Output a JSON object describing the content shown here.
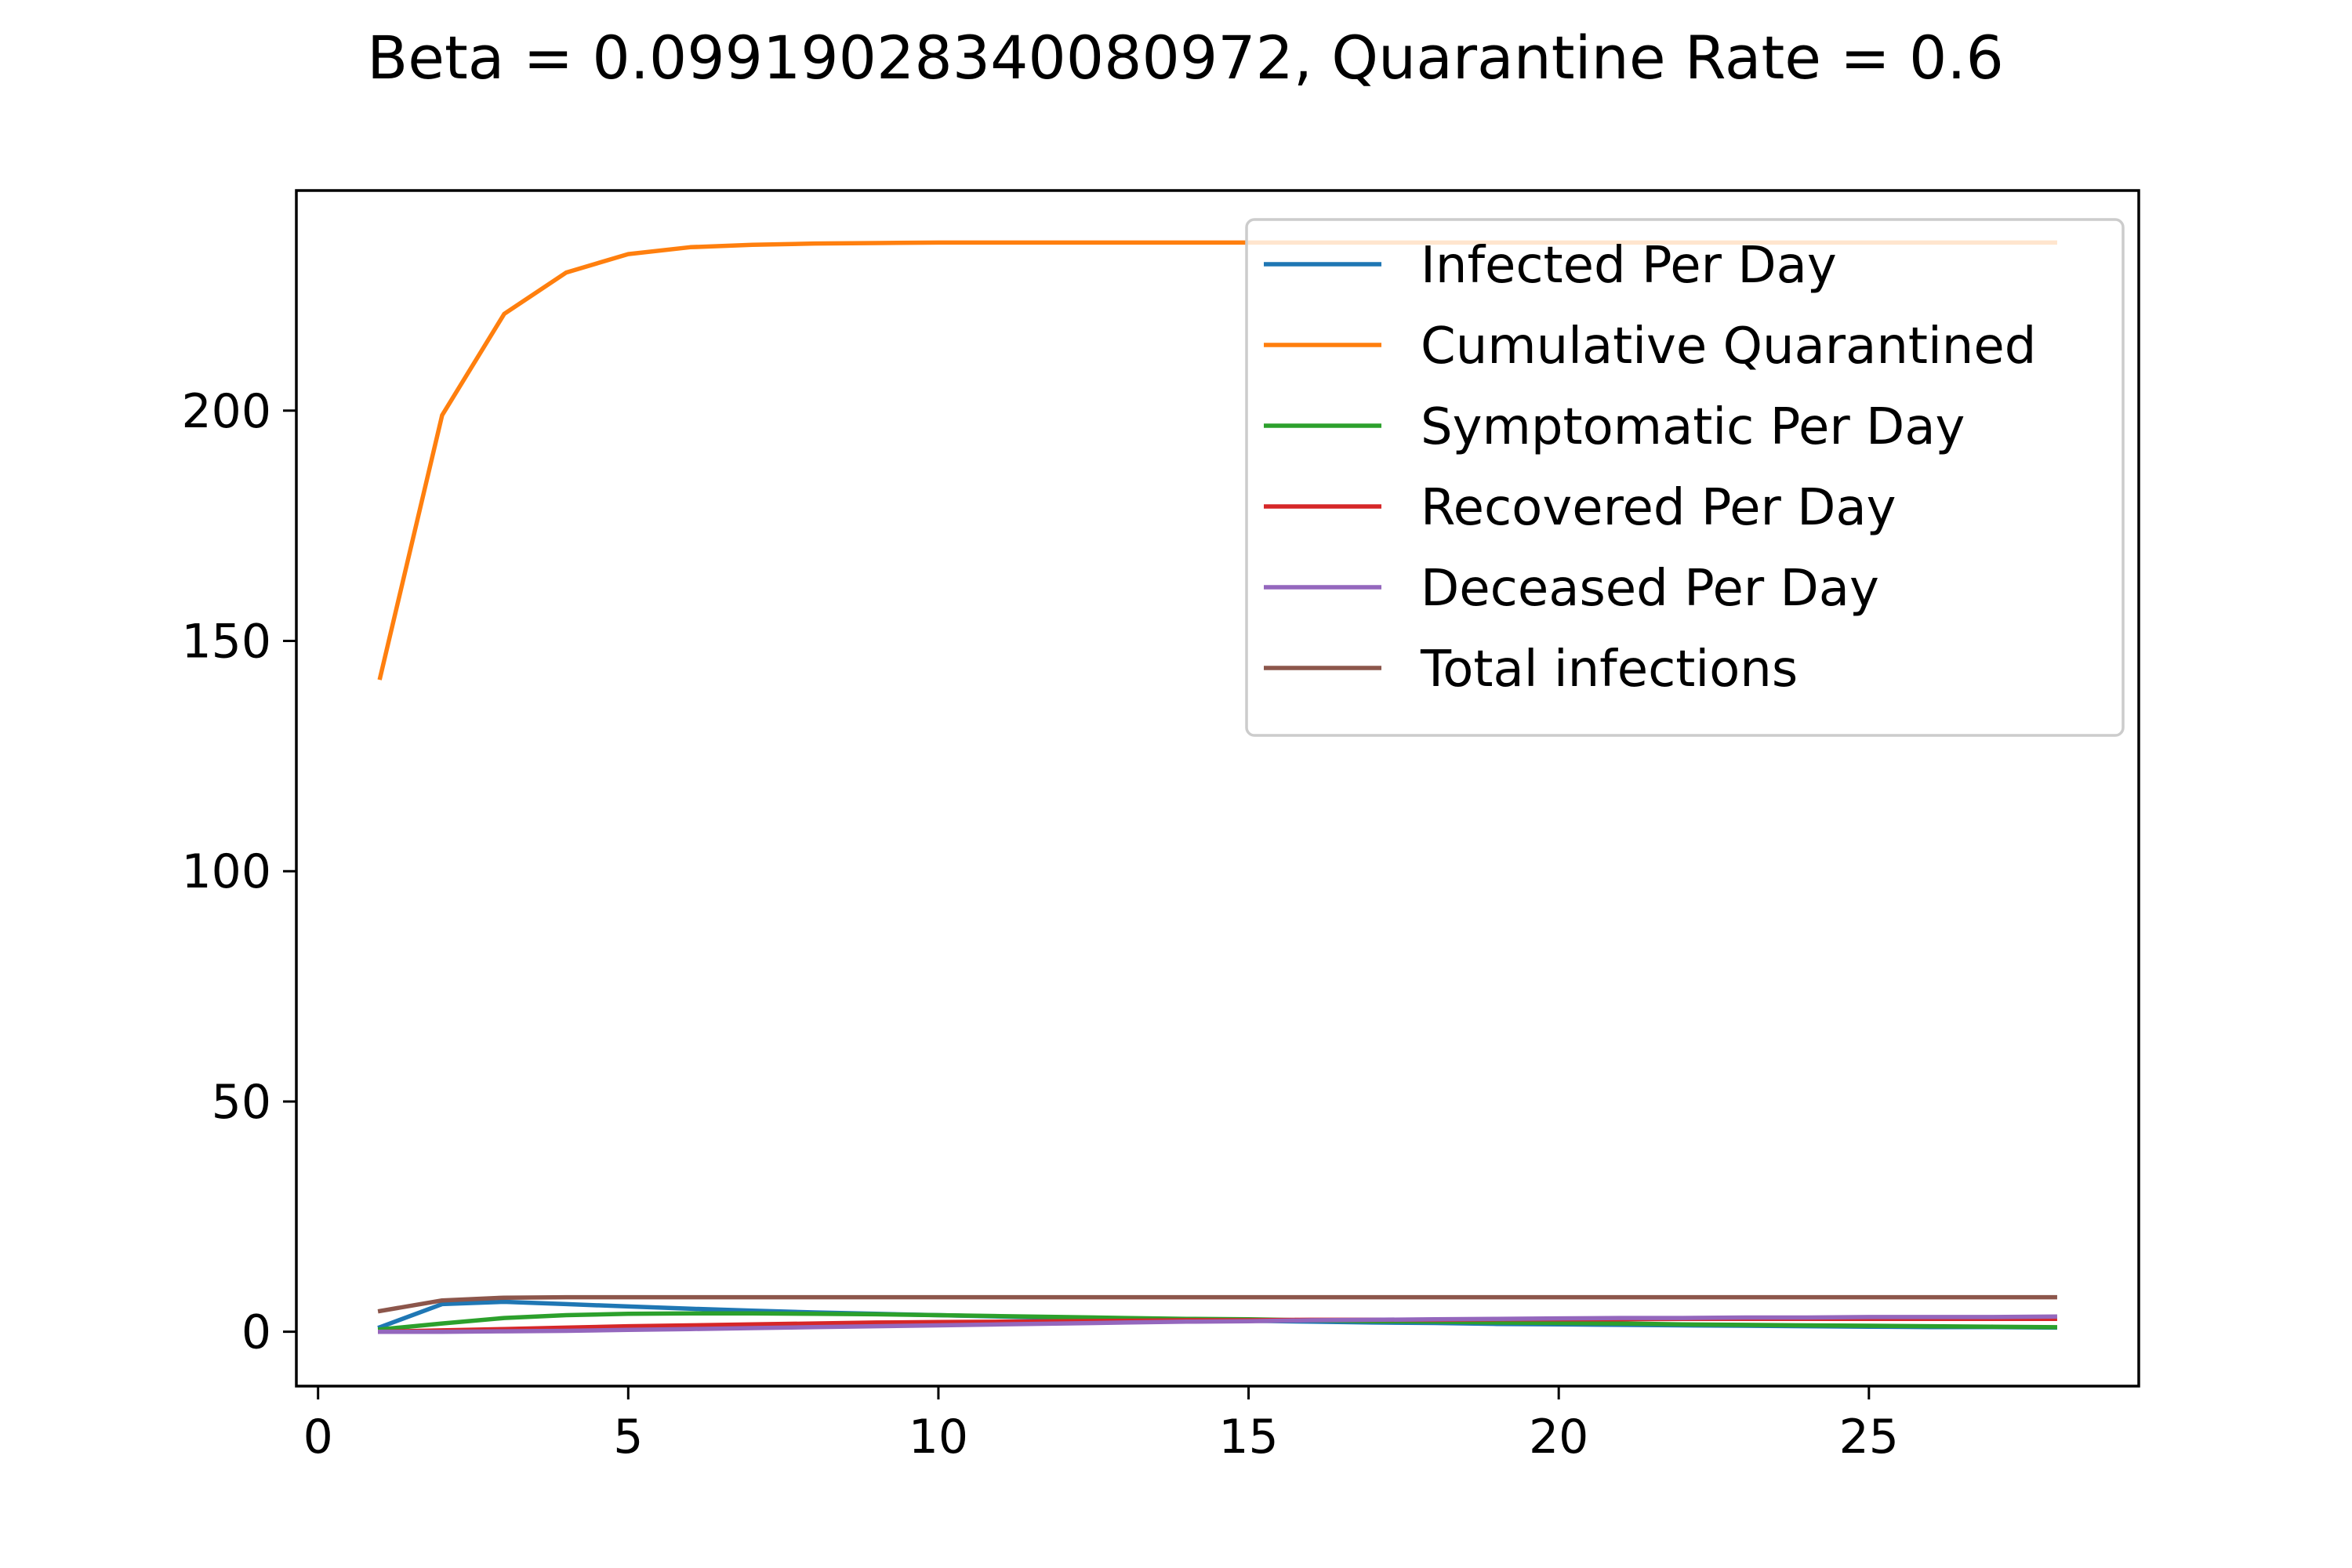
{
  "chart_data": {
    "type": "line",
    "title": "Beta = 0.09919028340080972, Quarantine Rate = 0.6",
    "xlabel": "",
    "ylabel": "",
    "xlim": [
      -0.35,
      29.35
    ],
    "ylim": [
      -11.8,
      247.8
    ],
    "xticks": [
      0,
      5,
      10,
      15,
      20,
      25
    ],
    "yticks": [
      0,
      50,
      100,
      150,
      200
    ],
    "grid": false,
    "legend_position": "upper right",
    "x": [
      1,
      2,
      3,
      4,
      5,
      6,
      7,
      8,
      9,
      10,
      11,
      12,
      13,
      14,
      15,
      16,
      17,
      18,
      19,
      20,
      21,
      22,
      23,
      24,
      25,
      26,
      27,
      28
    ],
    "series": [
      {
        "name": "Infected Per Day",
        "color": "#1f77b4",
        "values": [
          1.0,
          6.0,
          6.5,
          6.0,
          5.5,
          5.0,
          4.6,
          4.2,
          3.9,
          3.6,
          3.3,
          3.0,
          2.8,
          2.6,
          2.4,
          2.2,
          2.0,
          1.9,
          1.7,
          1.6,
          1.5,
          1.4,
          1.3,
          1.2,
          1.1,
          1.0,
          1.0,
          0.9
        ]
      },
      {
        "name": "Cumulative Quarantined",
        "color": "#ff7f0e",
        "values": [
          142,
          199,
          221,
          230,
          234,
          235.5,
          236,
          236.3,
          236.4,
          236.5,
          236.5,
          236.5,
          236.5,
          236.5,
          236.5,
          236.5,
          236.5,
          236.5,
          236.5,
          236.5,
          236.5,
          236.5,
          236.5,
          236.5,
          236.5,
          236.5,
          236.5,
          236.5
        ]
      },
      {
        "name": "Symptomatic Per Day",
        "color": "#2ca02c",
        "values": [
          0.5,
          1.8,
          3.0,
          3.6,
          3.9,
          4.0,
          4.0,
          3.9,
          3.8,
          3.6,
          3.4,
          3.2,
          3.0,
          2.8,
          2.7,
          2.5,
          2.3,
          2.2,
          2.0,
          1.9,
          1.8,
          1.6,
          1.5,
          1.4,
          1.3,
          1.2,
          1.1,
          1.0
        ]
      },
      {
        "name": "Recovered Per Day",
        "color": "#d62728",
        "values": [
          0.0,
          0.3,
          0.6,
          0.9,
          1.2,
          1.4,
          1.6,
          1.8,
          2.0,
          2.1,
          2.2,
          2.3,
          2.4,
          2.5,
          2.5,
          2.6,
          2.6,
          2.6,
          2.7,
          2.7,
          2.7,
          2.8,
          2.8,
          2.8,
          2.8,
          2.8,
          2.8,
          2.8
        ]
      },
      {
        "name": "Deceased Per Day",
        "color": "#9467bd",
        "values": [
          0.0,
          0.0,
          0.1,
          0.2,
          0.4,
          0.6,
          0.8,
          1.0,
          1.2,
          1.4,
          1.6,
          1.8,
          2.0,
          2.2,
          2.3,
          2.5,
          2.6,
          2.7,
          2.8,
          2.9,
          3.0,
          3.0,
          3.1,
          3.1,
          3.2,
          3.2,
          3.2,
          3.3
        ]
      },
      {
        "name": "Total infections",
        "color": "#8c564b",
        "values": [
          4.5,
          6.8,
          7.4,
          7.5,
          7.5,
          7.5,
          7.5,
          7.5,
          7.5,
          7.5,
          7.5,
          7.5,
          7.5,
          7.5,
          7.5,
          7.5,
          7.5,
          7.5,
          7.5,
          7.5,
          7.5,
          7.5,
          7.5,
          7.5,
          7.5,
          7.5,
          7.5,
          7.5
        ]
      }
    ]
  }
}
